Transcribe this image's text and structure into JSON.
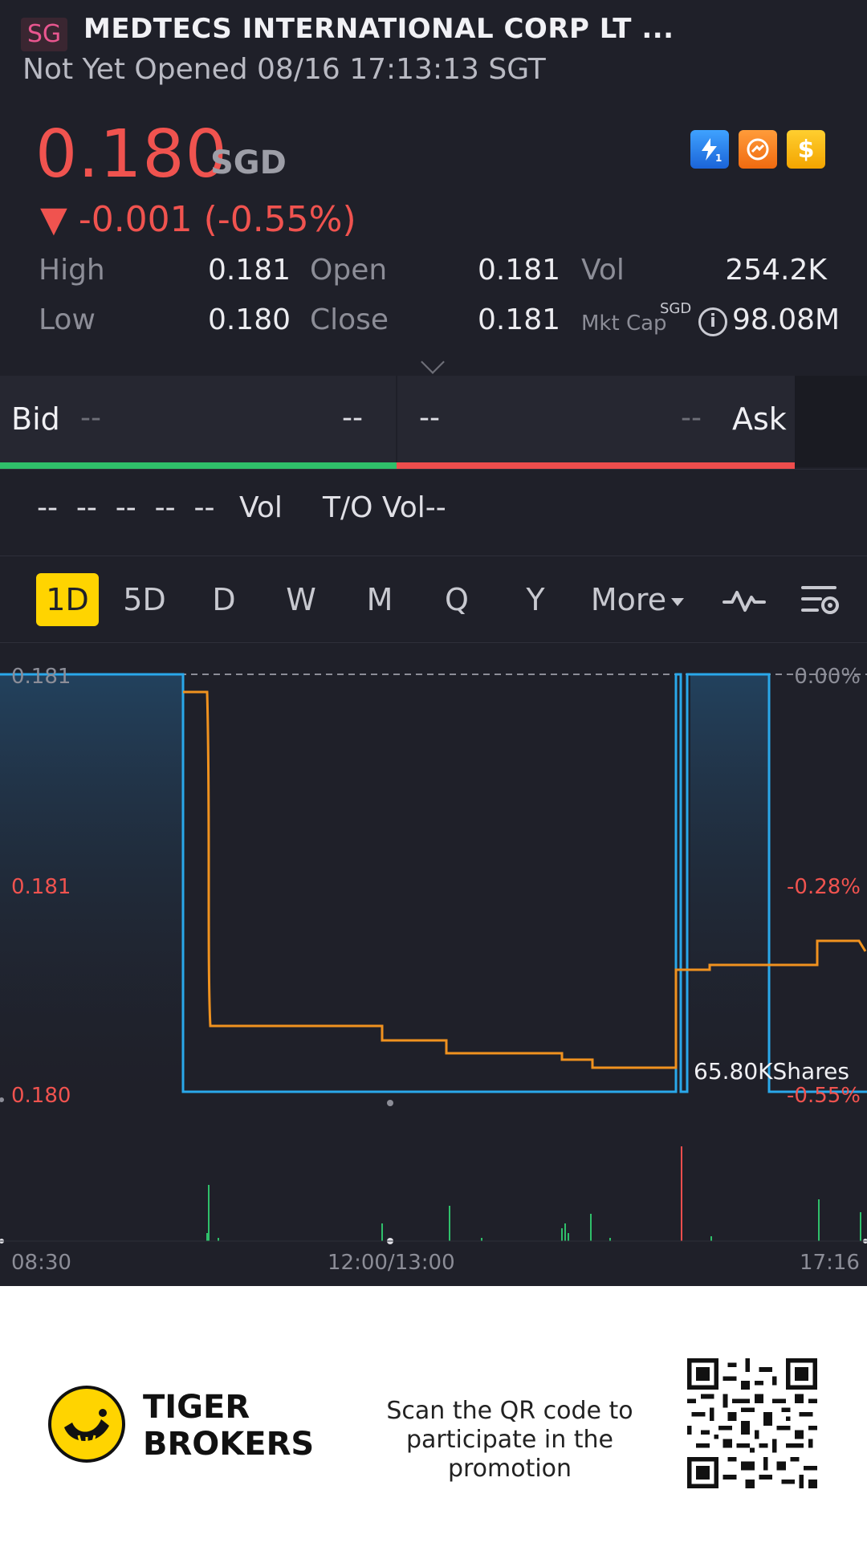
{
  "header": {
    "market_badge": "SG",
    "stock_name": "MEDTECS INTERNATIONAL CORP LT ...",
    "status_line": "Not Yet Opened 08/16 17:13:13 SGT"
  },
  "quote": {
    "price": "0.180",
    "currency": "SGD",
    "change": "▼ -0.001 (-0.55%)",
    "icons": [
      "flash-1-icon",
      "swap-icon",
      "dollar-icon"
    ],
    "high_label": "High",
    "high_value": "0.181",
    "low_label": "Low",
    "low_value": "0.180",
    "open_label": "Open",
    "open_value": "0.181",
    "close_label": "Close",
    "close_value": "0.181",
    "vol_label": "Vol",
    "vol_value": "254.2K",
    "mktcap_label": "Mkt Cap",
    "mktcap_currency": "SGD",
    "mktcap_value": "98.08M"
  },
  "bidask": {
    "bid_label": "Bid",
    "bid_price": "--",
    "bid_size": "--",
    "ask_size": "--",
    "ask_price": "--",
    "ask_label": "Ask"
  },
  "trades": {
    "row_dashes": "--  --  --  --  --",
    "vol_label": "Vol",
    "to_vol_label": "T/O Vol--"
  },
  "tabs": [
    {
      "label": "1D",
      "active": true
    },
    {
      "label": "5D"
    },
    {
      "label": "D"
    },
    {
      "label": "W"
    },
    {
      "label": "M"
    },
    {
      "label": "Q"
    },
    {
      "label": "Y"
    },
    {
      "label": "More"
    }
  ],
  "chart_data": {
    "type": "line",
    "y_left_labels": [
      "0.181",
      "0.181",
      "0.180"
    ],
    "y_right_labels": [
      "0.00%",
      "-0.28%",
      "-0.55%"
    ],
    "x_labels": [
      "08:30",
      "12:00/13:00",
      "17:16"
    ],
    "ylim": [
      0.18,
      0.181
    ],
    "annotation": "65.80KShares",
    "colors": {
      "price": "#2aa8ea",
      "average": "#f0921f",
      "vol_up": "#2fbf6a",
      "vol_down": "#ee4d4d"
    }
  },
  "footer": {
    "brand_line1": "TIGER",
    "brand_line2": "BROKERS",
    "promo_line1": "Scan the QR code to",
    "promo_line2": "participate in the promotion"
  }
}
